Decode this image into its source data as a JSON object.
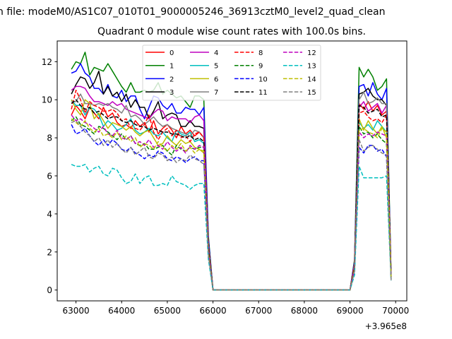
{
  "chart_data": {
    "type": "line",
    "suptitle": "n file: modeM0/AS1C07_010T01_9000005246_36913cztM0_level2_quad_clean",
    "title": "Quadrant 0 module wise count rates with 100.0s bins.",
    "xlabel": "",
    "ylabel": "",
    "x_offset_text": "+3.965e8",
    "xlim": [
      62589,
      70244
    ],
    "ylim": [
      -0.57,
      13.09
    ],
    "xticks": [
      63000,
      64000,
      65000,
      66000,
      67000,
      68000,
      69000,
      70000
    ],
    "yticks": [
      0,
      2,
      4,
      6,
      8,
      10,
      12
    ],
    "grid": false,
    "legend": {
      "placement": "top-center",
      "columns": 4
    },
    "x_start": 62900,
    "x_step": 100,
    "series": [
      {
        "name": "0",
        "color": "#ff0000",
        "dashed": false,
        "values": [
          9.2,
          9.7,
          9.4,
          9.0,
          9.6,
          9.3,
          9.0,
          9.6,
          9.1,
          9.3,
          8.8,
          8.6,
          8.7,
          8.5,
          8.9,
          8.6,
          8.8,
          8.3,
          8.9,
          8.2,
          8.5,
          8.7,
          8.4,
          8.0,
          8.6,
          8.2,
          8.4,
          8.1,
          8.3,
          8.0,
          2.5,
          0,
          0,
          0,
          0,
          0,
          0,
          0,
          0,
          0,
          0,
          0,
          0,
          0,
          0,
          0,
          0,
          0,
          0,
          0,
          0,
          0,
          0,
          0,
          0,
          0,
          0,
          0,
          0,
          0,
          0,
          0,
          1.3,
          9.8,
          9.5,
          9.9,
          9.4,
          9.7,
          9.2,
          9.4,
          0.7
        ]
      },
      {
        "name": "1",
        "color": "#008000",
        "dashed": false,
        "values": [
          11.6,
          12.0,
          11.9,
          12.5,
          11.3,
          11.7,
          11.6,
          11.5,
          11.9,
          11.5,
          11.1,
          10.7,
          10.4,
          10.9,
          10.4,
          10.4,
          10.5,
          10.4,
          10.5,
          10.9,
          10.3,
          10.5,
          10.3,
          10.1,
          10.2,
          9.9,
          9.6,
          10.2,
          10.2,
          10.0,
          2.8,
          0,
          0,
          0,
          0,
          0,
          0,
          0,
          0,
          0,
          0,
          0,
          0,
          0,
          0,
          0,
          0,
          0,
          0,
          0,
          0,
          0,
          0,
          0,
          0,
          0,
          0,
          0,
          0,
          0,
          0,
          0,
          1.6,
          11.7,
          11.2,
          11.6,
          11.2,
          10.5,
          10.7,
          11.1,
          0.8
        ]
      },
      {
        "name": "2",
        "color": "#0000ff",
        "dashed": false,
        "values": [
          11.4,
          11.5,
          11.9,
          11.4,
          11.2,
          10.6,
          10.6,
          10.3,
          10.8,
          10.2,
          10.1,
          10.5,
          9.9,
          10.2,
          10.2,
          9.5,
          9.0,
          9.6,
          10.2,
          10.1,
          9.7,
          9.5,
          9.8,
          9.3,
          9.3,
          9.6,
          9.5,
          9.5,
          9.2,
          9.6,
          2.7,
          0,
          0,
          0,
          0,
          0,
          0,
          0,
          0,
          0,
          0,
          0,
          0,
          0,
          0,
          0,
          0,
          0,
          0,
          0,
          0,
          0,
          0,
          0,
          0,
          0,
          0,
          0,
          0,
          0,
          0,
          0,
          1.5,
          10.7,
          10.8,
          10.2,
          10.9,
          10.3,
          10.0,
          10.6,
          0.7
        ]
      },
      {
        "name": "3",
        "color": "#000000",
        "dashed": false,
        "values": [
          10.3,
          10.8,
          11.2,
          11.1,
          10.6,
          10.9,
          11.5,
          10.3,
          10.7,
          10.2,
          10.4,
          9.9,
          10.3,
          9.6,
          10.0,
          9.6,
          9.6,
          9.0,
          9.4,
          9.9,
          9.0,
          9.2,
          9.3,
          9.2,
          8.6,
          8.6,
          8.9,
          8.6,
          8.6,
          8.5,
          2.5,
          0,
          0,
          0,
          0,
          0,
          0,
          0,
          0,
          0,
          0,
          0,
          0,
          0,
          0,
          0,
          0,
          0,
          0,
          0,
          0,
          0,
          0,
          0,
          0,
          0,
          0,
          0,
          0,
          0,
          0,
          0,
          1.4,
          10.3,
          10.4,
          10.6,
          10.2,
          10.0,
          10.0,
          9.7,
          0.7
        ]
      },
      {
        "name": "4",
        "color": "#bf00bf",
        "dashed": false,
        "values": [
          10.5,
          10.7,
          10.7,
          10.6,
          10.2,
          9.9,
          9.9,
          9.8,
          9.7,
          9.9,
          9.7,
          9.8,
          9.5,
          9.4,
          9.3,
          9.2,
          9.1,
          9.0,
          9.3,
          9.5,
          9.4,
          8.9,
          9.1,
          9.0,
          9.0,
          9.0,
          8.8,
          9.1,
          9.2,
          8.9,
          2.4,
          0,
          0,
          0,
          0,
          0,
          0,
          0,
          0,
          0,
          0,
          0,
          0,
          0,
          0,
          0,
          0,
          0,
          0,
          0,
          0,
          0,
          0,
          0,
          0,
          0,
          0,
          0,
          0,
          0,
          0,
          0,
          1.4,
          9.6,
          9.9,
          9.4,
          9.6,
          9.8,
          9.3,
          9.7,
          0.7
        ]
      },
      {
        "name": "5",
        "color": "#00bfbf",
        "dashed": false,
        "values": [
          10.0,
          9.7,
          9.7,
          9.2,
          9.6,
          9.5,
          9.2,
          8.6,
          8.9,
          8.7,
          8.4,
          8.5,
          8.7,
          9.0,
          8.4,
          8.2,
          8.3,
          8.5,
          8.2,
          8.1,
          8.3,
          8.0,
          7.8,
          8.4,
          8.2,
          8.1,
          8.3,
          7.8,
          7.9,
          7.7,
          2.3,
          0,
          0,
          0,
          0,
          0,
          0,
          0,
          0,
          0,
          0,
          0,
          0,
          0,
          0,
          0,
          0,
          0,
          0,
          0,
          0,
          0,
          0,
          0,
          0,
          0,
          0,
          0,
          0,
          0,
          0,
          0,
          1.2,
          8.8,
          8.5,
          8.7,
          8.4,
          8.9,
          8.6,
          8.3,
          0.6
        ]
      },
      {
        "name": "6",
        "color": "#bfbf00",
        "dashed": false,
        "values": [
          10.0,
          9.5,
          9.2,
          10.0,
          9.8,
          9.0,
          9.3,
          8.9,
          8.5,
          8.8,
          8.7,
          8.6,
          8.4,
          8.6,
          8.3,
          8.1,
          8.3,
          8.4,
          8.0,
          7.6,
          7.7,
          8.1,
          7.8,
          7.6,
          7.9,
          7.7,
          7.8,
          7.5,
          7.4,
          7.2,
          2.1,
          0,
          0,
          0,
          0,
          0,
          0,
          0,
          0,
          0,
          0,
          0,
          0,
          0,
          0,
          0,
          0,
          0,
          0,
          0,
          0,
          0,
          0,
          0,
          0,
          0,
          0,
          0,
          0,
          0,
          0,
          0,
          1.2,
          9.0,
          8.4,
          8.9,
          8.5,
          8.2,
          8.6,
          8.0,
          0.6
        ]
      },
      {
        "name": "7",
        "color": "#808080",
        "dashed": false,
        "values": [
          9.9,
          9.9,
          10.3,
          9.8,
          9.8,
          9.7,
          9.8,
          9.7,
          9.8,
          9.6,
          9.5,
          9.3,
          9.7,
          9.1,
          9.2,
          9.0,
          8.7,
          8.9,
          9.1,
          8.8,
          8.6,
          8.7,
          8.5,
          8.4,
          8.3,
          8.2,
          8.1,
          8.4,
          8.3,
          8.0,
          2.4,
          0,
          0,
          0,
          0,
          0,
          0,
          0,
          0,
          0,
          0,
          0,
          0,
          0,
          0,
          0,
          0,
          0,
          0,
          0,
          0,
          0,
          0,
          0,
          0,
          0,
          0,
          0,
          0,
          0,
          0,
          0,
          1.3,
          10.0,
          10.4,
          9.8,
          9.9,
          10.1,
          9.8,
          9.8,
          0.7
        ]
      },
      {
        "name": "8",
        "color": "#ff0000",
        "dashed": true,
        "values": [
          9.5,
          10.5,
          10.0,
          9.3,
          9.9,
          9.7,
          9.6,
          9.4,
          9.4,
          9.5,
          9.3,
          8.9,
          9.0,
          8.5,
          8.5,
          8.4,
          8.7,
          9.2,
          8.3,
          7.9,
          8.3,
          8.5,
          8.1,
          8.4,
          8.0,
          8.1,
          7.8,
          8.2,
          8.3,
          8.0,
          2.3,
          0,
          0,
          0,
          0,
          0,
          0,
          0,
          0,
          0,
          0,
          0,
          0,
          0,
          0,
          0,
          0,
          0,
          0,
          0,
          0,
          0,
          0,
          0,
          0,
          0,
          0,
          0,
          0,
          0,
          0,
          0,
          1.3,
          9.3,
          9.4,
          9.1,
          8.9,
          9.0,
          8.8,
          9.2,
          0.7
        ]
      },
      {
        "name": "9",
        "color": "#008000",
        "dashed": true,
        "values": [
          8.9,
          9.1,
          8.7,
          8.6,
          8.4,
          8.2,
          8.6,
          8.5,
          8.3,
          8.1,
          7.9,
          8.2,
          7.9,
          8.1,
          7.7,
          7.6,
          7.7,
          7.4,
          7.4,
          7.5,
          7.6,
          7.3,
          7.1,
          7.6,
          7.4,
          7.3,
          7.5,
          7.4,
          7.5,
          7.5,
          2.0,
          0,
          0,
          0,
          0,
          0,
          0,
          0,
          0,
          0,
          0,
          0,
          0,
          0,
          0,
          0,
          0,
          0,
          0,
          0,
          0,
          0,
          0,
          0,
          0,
          0,
          0,
          0,
          0,
          0,
          0,
          0,
          1.1,
          8.6,
          8.2,
          8.3,
          8.0,
          8.2,
          7.9,
          7.7,
          0.6
        ]
      },
      {
        "name": "10",
        "color": "#0000ff",
        "dashed": true,
        "values": [
          8.7,
          8.2,
          8.3,
          8.5,
          8.1,
          7.8,
          7.6,
          7.9,
          7.6,
          7.9,
          7.7,
          7.4,
          7.3,
          7.5,
          7.2,
          7.1,
          6.9,
          7.1,
          7.0,
          7.3,
          7.2,
          6.9,
          6.8,
          7.0,
          6.9,
          6.7,
          6.9,
          7.0,
          6.8,
          6.8,
          1.9,
          0,
          0,
          0,
          0,
          0,
          0,
          0,
          0,
          0,
          0,
          0,
          0,
          0,
          0,
          0,
          0,
          0,
          0,
          0,
          0,
          0,
          0,
          0,
          0,
          0,
          0,
          0,
          0,
          0,
          0,
          0,
          1.0,
          7.5,
          7.2,
          7.6,
          7.6,
          7.3,
          7.4,
          7.0,
          0.6
        ]
      },
      {
        "name": "11",
        "color": "#000000",
        "dashed": true,
        "values": [
          9.8,
          10.0,
          9.7,
          9.5,
          9.6,
          9.3,
          9.4,
          9.2,
          9.0,
          9.1,
          9.1,
          8.9,
          8.8,
          8.9,
          8.7,
          8.6,
          8.6,
          8.4,
          8.5,
          8.4,
          8.3,
          8.3,
          8.2,
          8.2,
          8.1,
          8.0,
          8.1,
          7.9,
          8.0,
          7.8,
          2.2,
          0,
          0,
          0,
          0,
          0,
          0,
          0,
          0,
          0,
          0,
          0,
          0,
          0,
          0,
          0,
          0,
          0,
          0,
          0,
          0,
          0,
          0,
          0,
          0,
          0,
          0,
          0,
          0,
          0,
          0,
          0,
          1.2,
          9.7,
          9.6,
          9.3,
          9.4,
          9.5,
          9.1,
          9.2,
          0.7
        ]
      },
      {
        "name": "12",
        "color": "#bf00bf",
        "dashed": true,
        "values": [
          9.2,
          8.9,
          9.0,
          8.8,
          8.7,
          8.5,
          8.3,
          8.6,
          8.2,
          8.1,
          8.4,
          8.0,
          7.9,
          8.1,
          7.7,
          7.8,
          7.6,
          7.9,
          7.5,
          7.6,
          7.4,
          7.8,
          7.5,
          7.3,
          7.5,
          7.2,
          7.6,
          7.4,
          7.6,
          7.5,
          2.0,
          0,
          0,
          0,
          0,
          0,
          0,
          0,
          0,
          0,
          0,
          0,
          0,
          0,
          0,
          0,
          0,
          0,
          0,
          0,
          0,
          0,
          0,
          0,
          0,
          0,
          0,
          0,
          0,
          0,
          0,
          0,
          1.1,
          8.3,
          8.0,
          8.2,
          8.1,
          8.3,
          8.2,
          8.1,
          0.6
        ]
      },
      {
        "name": "13",
        "color": "#00bfbf",
        "dashed": true,
        "values": [
          6.6,
          6.5,
          6.5,
          6.6,
          6.2,
          6.4,
          6.5,
          6.1,
          6.0,
          6.4,
          6.3,
          5.9,
          5.6,
          5.7,
          6.1,
          5.6,
          5.9,
          6.0,
          5.5,
          5.5,
          5.6,
          5.5,
          6.0,
          5.7,
          5.6,
          5.5,
          5.3,
          5.5,
          5.6,
          5.6,
          1.6,
          0,
          0,
          0,
          0,
          0,
          0,
          0,
          0,
          0,
          0,
          0,
          0,
          0,
          0,
          0,
          0,
          0,
          0,
          0,
          0,
          0,
          0,
          0,
          0,
          0,
          0,
          0,
          0,
          0,
          0,
          0,
          0.8,
          6.5,
          5.9,
          5.9,
          5.9,
          5.9,
          5.9,
          6.0,
          0.5
        ]
      },
      {
        "name": "14",
        "color": "#bfbf00",
        "dashed": true,
        "values": [
          9.0,
          8.8,
          8.6,
          8.9,
          8.5,
          8.3,
          8.5,
          8.1,
          8.2,
          8.0,
          8.3,
          7.9,
          8.1,
          7.8,
          8.0,
          7.5,
          7.7,
          7.6,
          7.4,
          7.8,
          7.5,
          7.3,
          7.6,
          7.4,
          7.7,
          7.3,
          7.5,
          7.2,
          7.4,
          7.3,
          2.0,
          0,
          0,
          0,
          0,
          0,
          0,
          0,
          0,
          0,
          0,
          0,
          0,
          0,
          0,
          0,
          0,
          0,
          0,
          0,
          0,
          0,
          0,
          0,
          0,
          0,
          0,
          0,
          0,
          0,
          0,
          0,
          1.1,
          8.4,
          8.5,
          8.3,
          8.2,
          8.0,
          8.5,
          8.3,
          0.6
        ]
      },
      {
        "name": "15",
        "color": "#808080",
        "dashed": true,
        "values": [
          8.8,
          8.9,
          8.6,
          8.3,
          8.1,
          7.8,
          8.0,
          7.6,
          7.9,
          7.5,
          7.7,
          7.4,
          7.2,
          7.5,
          7.1,
          7.3,
          7.5,
          7.0,
          6.9,
          7.2,
          7.1,
          6.8,
          7.0,
          6.7,
          6.9,
          6.8,
          7.1,
          6.9,
          6.8,
          6.6,
          1.8,
          0,
          0,
          0,
          0,
          0,
          0,
          0,
          0,
          0,
          0,
          0,
          0,
          0,
          0,
          0,
          0,
          0,
          0,
          0,
          0,
          0,
          0,
          0,
          0,
          0,
          0,
          0,
          0,
          0,
          0,
          0,
          1.0,
          7.9,
          7.3,
          7.5,
          7.6,
          7.4,
          7.2,
          7.1,
          0.5
        ]
      }
    ]
  }
}
